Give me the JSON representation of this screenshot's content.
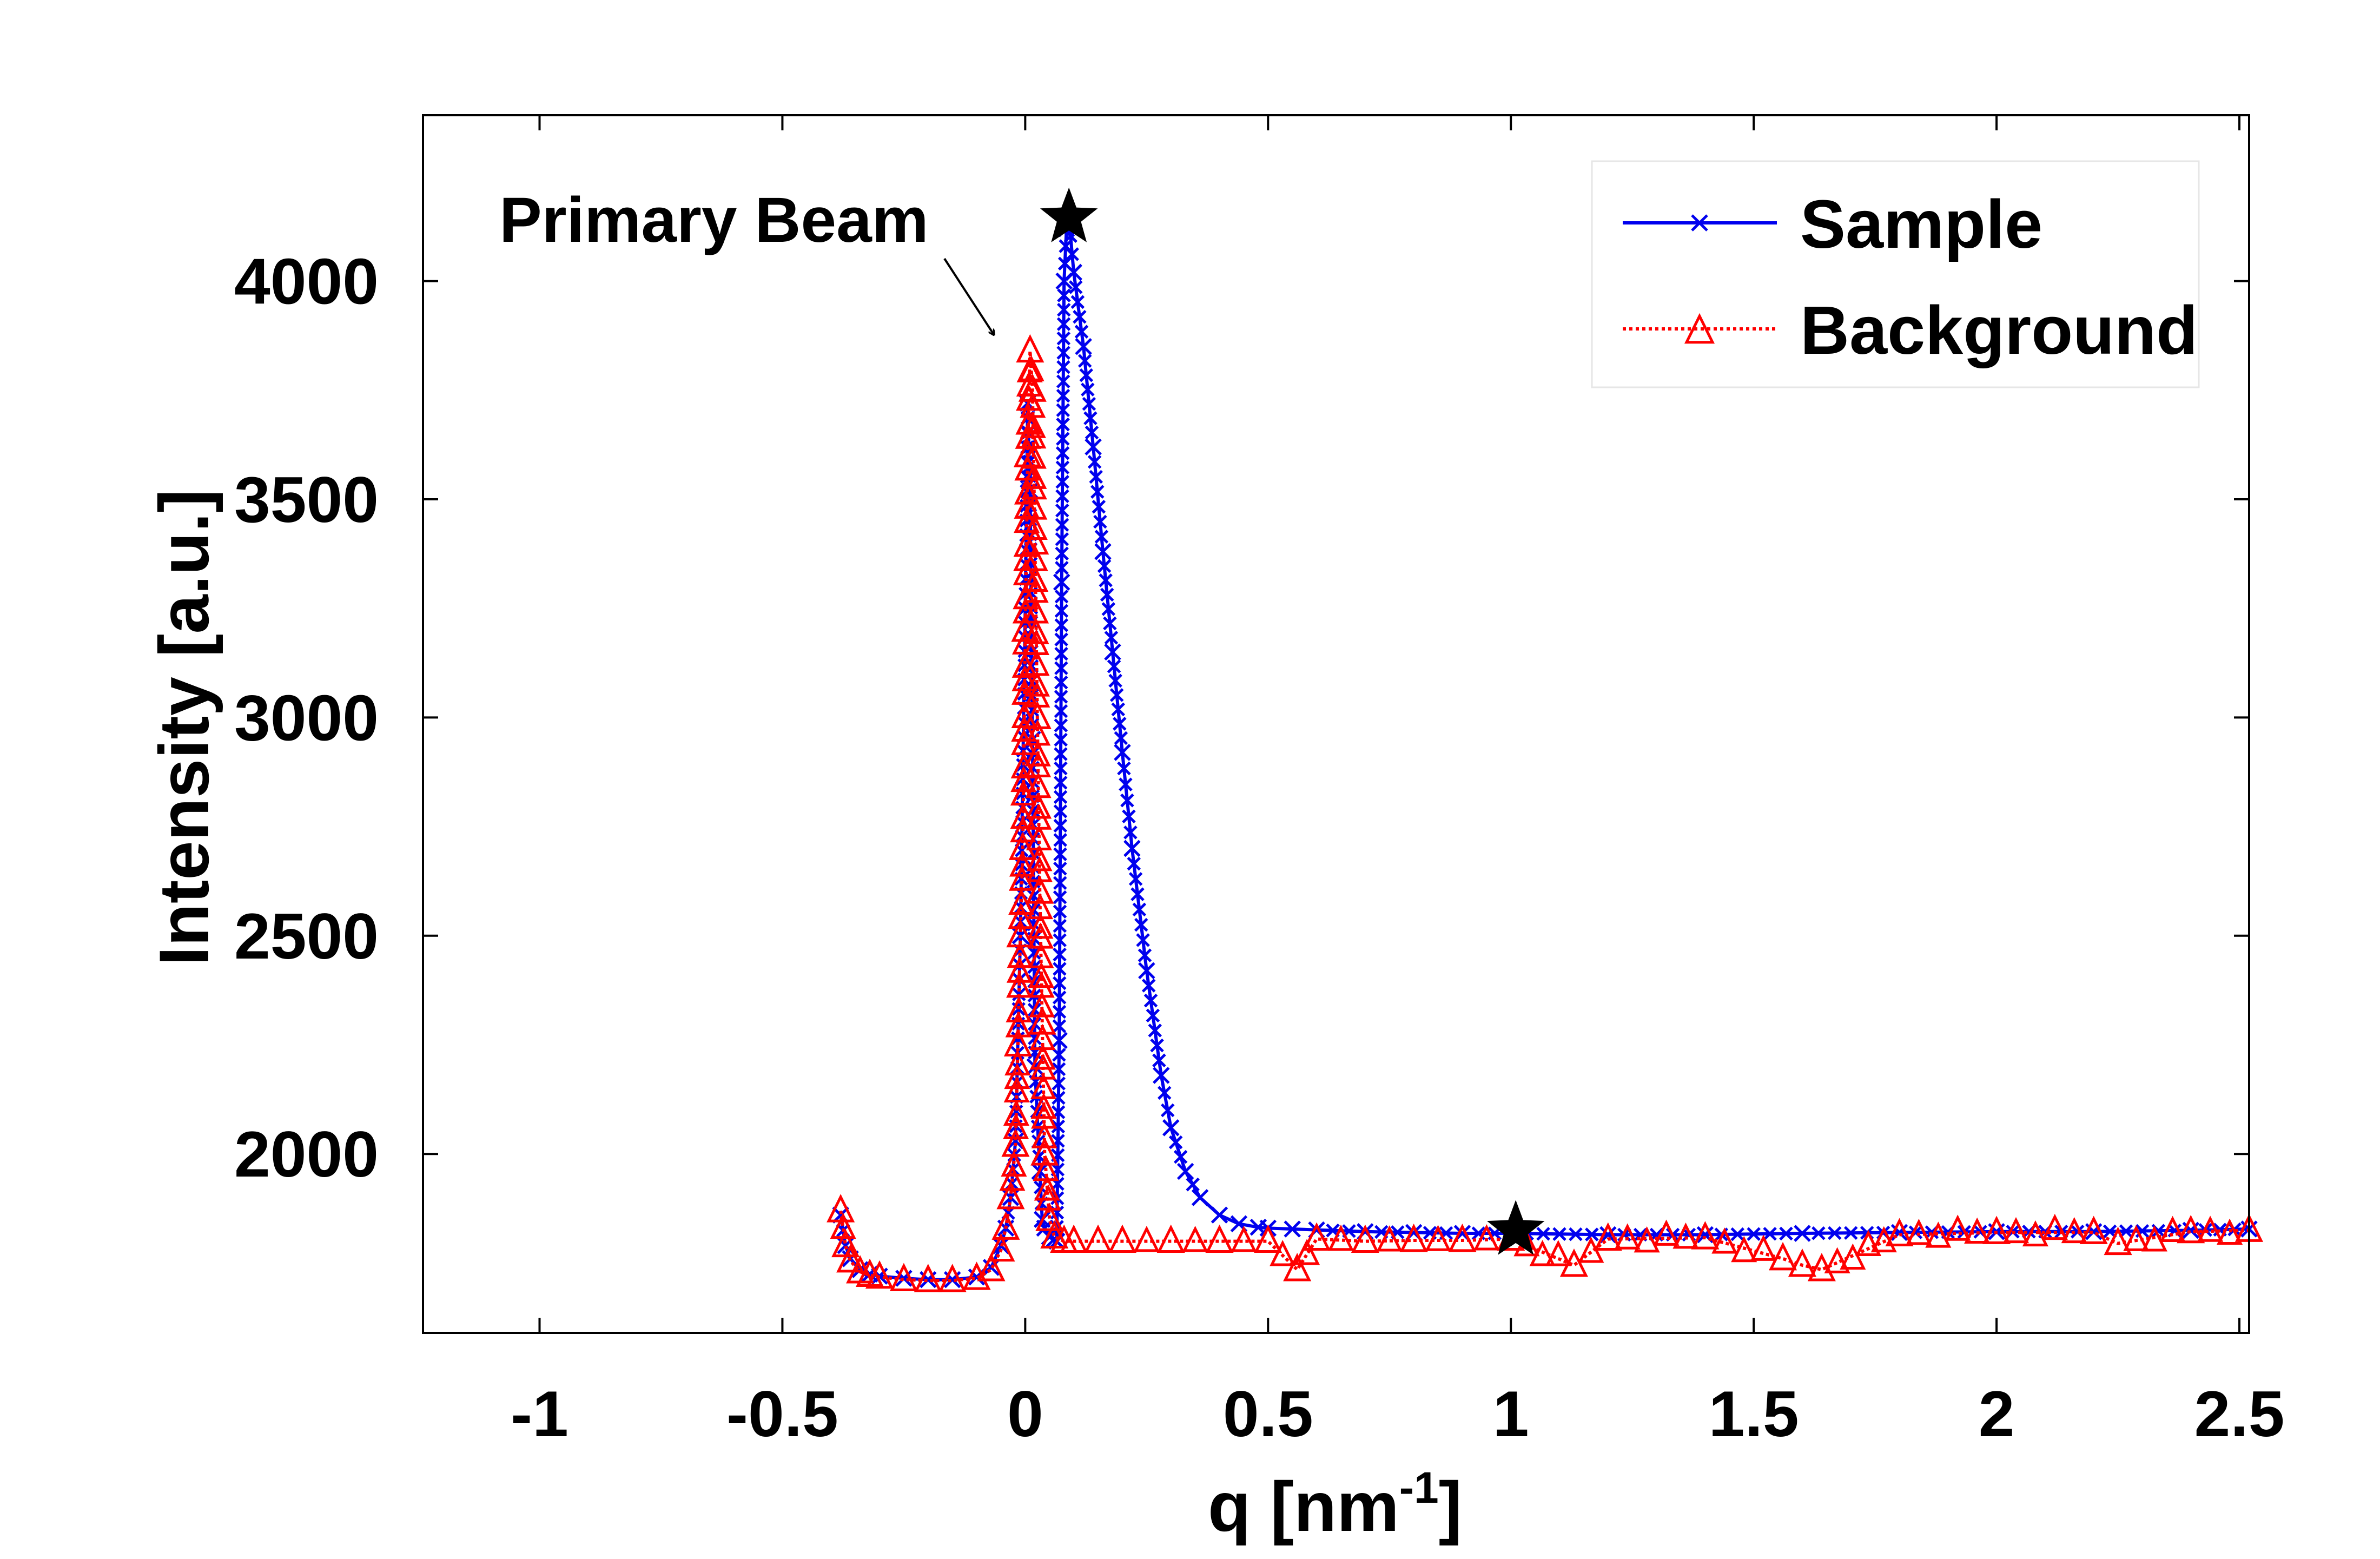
{
  "chart_data": {
    "type": "line",
    "title": "",
    "xlabel_main": "q [nm",
    "xlabel_sup": "-1",
    "xlabel_end": "]",
    "ylabel": "Intensity [a.u.]",
    "xlim": [
      -1.24,
      2.52
    ],
    "ylim": [
      1590,
      4380
    ],
    "xticks": [
      -1,
      -0.5,
      0,
      0.5,
      1,
      1.5,
      2,
      2.5
    ],
    "xtick_labels": [
      "-1",
      "-0.5",
      "0",
      "0.5",
      "1",
      "1.5",
      "2",
      "2.5"
    ],
    "yticks": [
      2000,
      2500,
      3000,
      3500,
      4000
    ],
    "ytick_labels": [
      "2000",
      "2500",
      "3000",
      "3500",
      "4000"
    ],
    "grid": false,
    "legend_position": "top-right",
    "annotation": {
      "text": "Primary Beam",
      "points_to": [
        -0.02,
        3840
      ]
    },
    "star_markers": [
      {
        "x": 0.09,
        "y": 4145
      },
      {
        "x": 1.01,
        "y": 1825
      }
    ],
    "series": [
      {
        "name": "Sample",
        "color": "#0000ee",
        "line_style": "solid",
        "marker": "x",
        "x": [
          -0.38,
          -0.37,
          -0.36,
          -0.34,
          -0.32,
          -0.3,
          -0.25,
          -0.2,
          -0.15,
          -0.1,
          -0.07,
          -0.05,
          -0.04,
          -0.03,
          -0.02,
          -0.01,
          0.0,
          0.005,
          0.01,
          0.015,
          0.02,
          0.03,
          0.035,
          0.04,
          0.05,
          0.06,
          0.065,
          0.07,
          0.075,
          0.08,
          0.085,
          0.09,
          0.1,
          0.12,
          0.14,
          0.16,
          0.18,
          0.2,
          0.22,
          0.25,
          0.28,
          0.3,
          0.33,
          0.36,
          0.4,
          0.44,
          0.48,
          0.5,
          0.55,
          0.6,
          0.7,
          0.8,
          0.9,
          1.0,
          1.2,
          1.4,
          1.6,
          1.8,
          2.0,
          2.2,
          2.4,
          2.52
        ],
        "y": [
          1860,
          1790,
          1760,
          1735,
          1725,
          1720,
          1715,
          1712,
          1712,
          1718,
          1740,
          1790,
          1830,
          1900,
          2030,
          2500,
          3250,
          3720,
          3520,
          2950,
          2200,
          1960,
          1850,
          1830,
          1810,
          1805,
          1800,
          2260,
          3310,
          4000,
          4120,
          4145,
          4020,
          3850,
          3620,
          3380,
          3150,
          2920,
          2700,
          2420,
          2180,
          2060,
          1960,
          1900,
          1860,
          1840,
          1832,
          1830,
          1828,
          1826,
          1822,
          1820,
          1818,
          1818,
          1815,
          1815,
          1818,
          1820,
          1822,
          1822,
          1825,
          1828
        ]
      },
      {
        "name": "Background",
        "color": "#ff0000",
        "line_style": "dotted",
        "marker": "triangle",
        "x": [
          -0.38,
          -0.37,
          -0.36,
          -0.34,
          -0.32,
          -0.3,
          -0.25,
          -0.2,
          -0.15,
          -0.1,
          -0.07,
          -0.05,
          -0.04,
          -0.03,
          -0.02,
          -0.015,
          -0.01,
          -0.005,
          0.0,
          0.005,
          0.01,
          0.015,
          0.02,
          0.025,
          0.03,
          0.035,
          0.04,
          0.05,
          0.06,
          0.08,
          0.1,
          0.15,
          0.2,
          0.3,
          0.4,
          0.5,
          0.56,
          0.6,
          0.7,
          0.8,
          0.9,
          1.0,
          1.13,
          1.2,
          1.4,
          1.56,
          1.6,
          1.64,
          1.8,
          2.0,
          2.2,
          2.25,
          2.4,
          2.52
        ],
        "y": [
          1870,
          1790,
          1755,
          1730,
          1722,
          1718,
          1712,
          1710,
          1710,
          1715,
          1735,
          1780,
          1830,
          1900,
          2020,
          2250,
          2500,
          2700,
          3200,
          3600,
          3840,
          3750,
          3400,
          3000,
          2600,
          2300,
          2000,
          1850,
          1810,
          1800,
          1800,
          1800,
          1800,
          1800,
          1800,
          1800,
          1735,
          1805,
          1800,
          1802,
          1802,
          1805,
          1745,
          1805,
          1808,
          1760,
          1745,
          1735,
          1815,
          1820,
          1820,
          1795,
          1822,
          1825
        ]
      }
    ]
  }
}
